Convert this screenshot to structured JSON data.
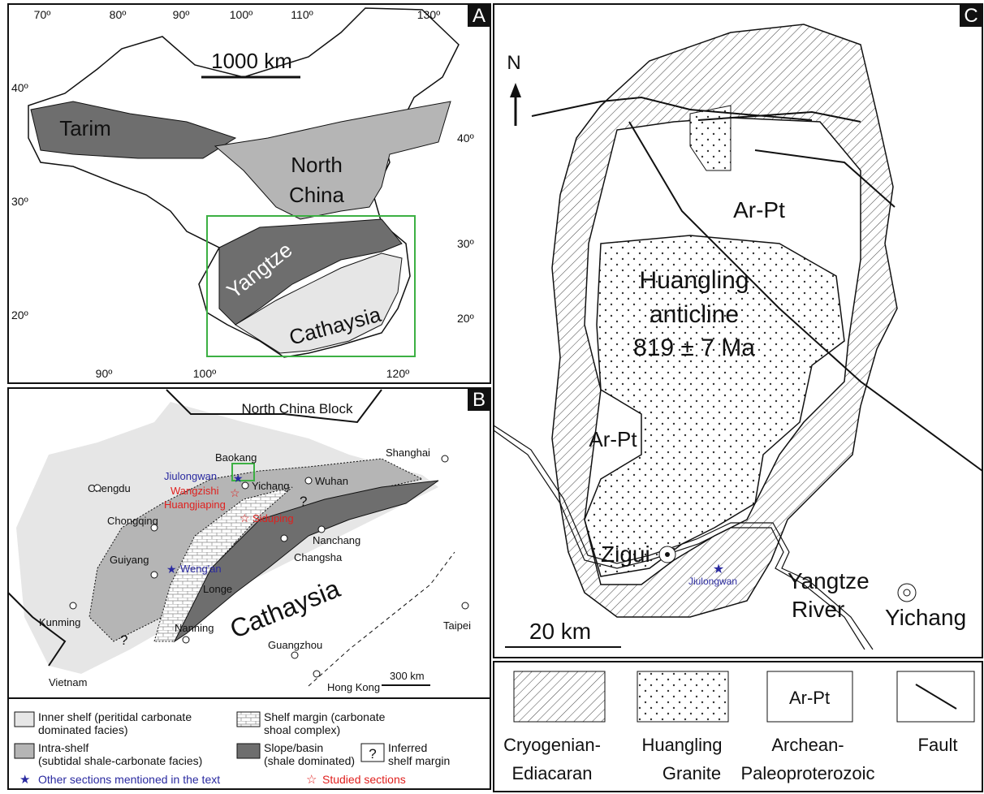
{
  "panel_a": {
    "letter": "A",
    "lon_top": [
      "70º",
      "80º",
      "90º",
      "100º",
      "110º",
      "130º"
    ],
    "lat_left": [
      "40º",
      "30º",
      "20º"
    ],
    "lat_right": [
      "40º",
      "30º",
      "20º"
    ],
    "lon_bottom": [
      "90º",
      "100º",
      "120º"
    ],
    "scale": "1000 km",
    "blocks": {
      "tarim": "Tarim",
      "north_china": [
        "North",
        "China"
      ],
      "yangtze": "Yangtze",
      "cathaysia": "Cathaysia"
    }
  },
  "panel_b": {
    "letter": "B",
    "block": "North China Block",
    "places": [
      "Baokang",
      "Yichang",
      "Wuhan",
      "Shanghai",
      "Chengdu",
      "Chongqing",
      "Guiyang",
      "Changsha",
      "Nanchang",
      "Kunming",
      "Nanning",
      "Guangzhou",
      "Hong Kong",
      "Taipei"
    ],
    "other_sections": [
      "Jiulongwan",
      "Weng'an"
    ],
    "studied_sections": [
      "Wangzishi",
      "Huangjiaping",
      "Siduping"
    ],
    "regions": [
      "Longe",
      "Cathaysia",
      "Vietnam"
    ],
    "unknowns": [
      "?",
      "?"
    ],
    "scale": "300 km",
    "legend": {
      "inner_shelf": [
        "Inner shelf (peritidal carbonate",
        "dominated facies)"
      ],
      "shelf_margin": [
        "Shelf margin (carbonate",
        "shoal complex)"
      ],
      "intra_shelf": [
        "Intra-shelf",
        "(subtidal shale-carbonate facies)"
      ],
      "slope_basin": [
        "Slope/basin",
        "(shale dominated)"
      ],
      "inferred_symbol": "?",
      "inferred": [
        "Inferred",
        "shelf margin"
      ],
      "other": "Other sections mentioned in the text",
      "studied": "Studied sections"
    }
  },
  "panel_c": {
    "letter": "C",
    "north": "N",
    "units": [
      "Ar-Pt",
      "Ar-Pt"
    ],
    "anticline": [
      "Huangling",
      "anticline",
      "819 ± 7 Ma"
    ],
    "zigui": "Zigui",
    "jiulongwan": "Jiulongwan",
    "river": [
      "Yangtze",
      "River"
    ],
    "yichang": "Yichang",
    "scale": "20 km",
    "legend": {
      "symbol": "Ar-Pt",
      "cryogenian": [
        "Cryogenian-",
        "Ediacaran"
      ],
      "granite": [
        "Huangling",
        "Granite"
      ],
      "archean": [
        "Archean-",
        "Paleoproterozoic"
      ],
      "fault": "Fault"
    }
  }
}
